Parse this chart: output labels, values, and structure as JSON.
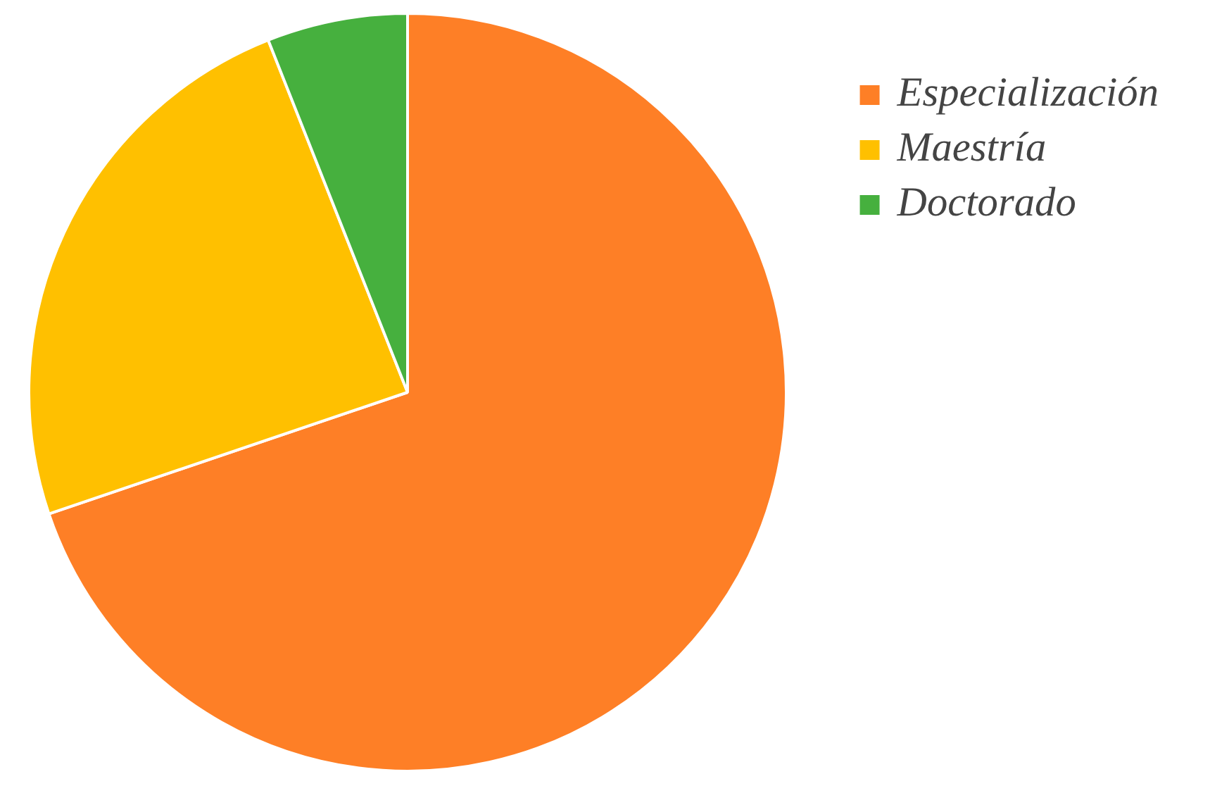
{
  "chart_data": {
    "type": "pie",
    "categories": [
      "Especialización",
      "Maestría",
      "Doctorado"
    ],
    "values": [
      69.8,
      24.2,
      6.0
    ],
    "colors": [
      "#fe7f26",
      "#ffc000",
      "#46b03e"
    ],
    "legend": "top right"
  }
}
